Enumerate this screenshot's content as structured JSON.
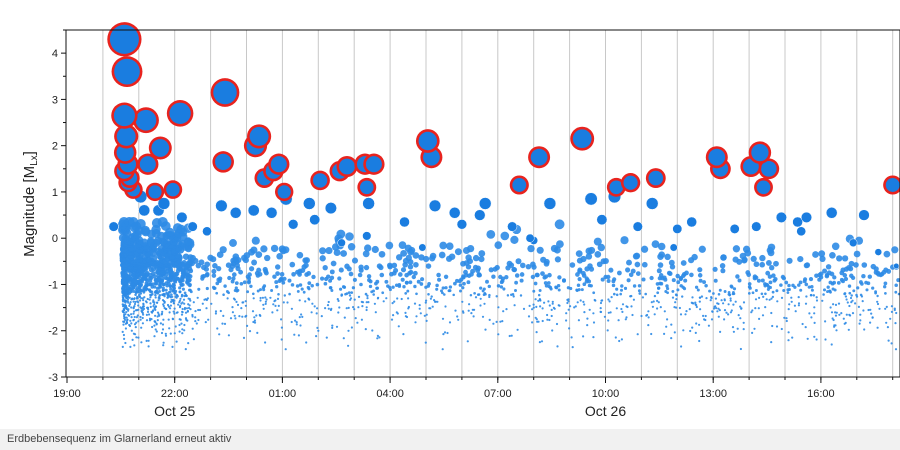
{
  "caption": "Erdbebensequenz im Glarnerland erneut aktiv",
  "colors": {
    "point_fill": "#2e8be6",
    "large_point_fill": "#1a7de0",
    "highlight_ring": "#e8231e",
    "grid": "#c8c8c8",
    "axis": "#111111"
  },
  "chart_data": {
    "type": "scatter",
    "title": "",
    "xlabel": "",
    "ylabel": "Magnitude [M",
    "ylabel_sub": "Lx",
    "ylabel_close": "]",
    "ylim": [
      -3,
      4.5
    ],
    "yticks": [
      -3,
      -2,
      -1,
      0,
      1,
      2,
      3,
      4
    ],
    "x_unit": "hours since 2020-10-24 19:00",
    "xlim": [
      0,
      23.4
    ],
    "xticks": [
      {
        "x": 0,
        "label": "19:00"
      },
      {
        "x": 3,
        "label": "22:00"
      },
      {
        "x": 6,
        "label": "01:00"
      },
      {
        "x": 9,
        "label": "04:00"
      },
      {
        "x": 12,
        "label": "07:00"
      },
      {
        "x": 15,
        "label": "10:00"
      },
      {
        "x": 18,
        "label": "13:00"
      },
      {
        "x": 21,
        "label": "16:00"
      }
    ],
    "date_labels": [
      {
        "x": 3,
        "label": "Oct 25"
      },
      {
        "x": 15,
        "label": "Oct 26"
      }
    ],
    "grid": "vertical lines every hour",
    "legend": "none",
    "highlight_threshold": 1.0,
    "points": [
      [
        1.6,
        4.3
      ],
      [
        1.67,
        3.6
      ],
      [
        1.6,
        2.65
      ],
      [
        2.2,
        2.55
      ],
      [
        3.15,
        2.7
      ],
      [
        4.4,
        3.15
      ],
      [
        2.6,
        1.95
      ],
      [
        1.65,
        2.2
      ],
      [
        1.62,
        1.85
      ],
      [
        1.7,
        1.6
      ],
      [
        2.25,
        1.6
      ],
      [
        2.45,
        1.0
      ],
      [
        2.95,
        1.05
      ],
      [
        4.35,
        1.65
      ],
      [
        5.35,
        2.2
      ],
      [
        5.25,
        2.0
      ],
      [
        5.5,
        1.3
      ],
      [
        5.75,
        1.45
      ],
      [
        5.9,
        1.6
      ],
      [
        6.05,
        1.0
      ],
      [
        6.1,
        0.85
      ],
      [
        6.75,
        0.75
      ],
      [
        7.05,
        1.25
      ],
      [
        7.35,
        0.65
      ],
      [
        7.6,
        1.45
      ],
      [
        7.8,
        1.55
      ],
      [
        8.3,
        1.6
      ],
      [
        8.55,
        1.6
      ],
      [
        8.35,
        1.1
      ],
      [
        8.4,
        0.75
      ],
      [
        10.05,
        2.1
      ],
      [
        10.15,
        1.75
      ],
      [
        10.25,
        0.7
      ],
      [
        11.65,
        0.75
      ],
      [
        12.6,
        1.15
      ],
      [
        13.15,
        1.75
      ],
      [
        14.35,
        2.15
      ],
      [
        15.25,
        0.9
      ],
      [
        15.3,
        1.1
      ],
      [
        15.7,
        1.2
      ],
      [
        16.4,
        1.3
      ],
      [
        18.1,
        1.75
      ],
      [
        18.2,
        1.5
      ],
      [
        19.05,
        1.55
      ],
      [
        19.3,
        1.85
      ],
      [
        19.4,
        1.1
      ],
      [
        19.55,
        1.5
      ],
      [
        20.45,
        0.15
      ],
      [
        23.4,
        1.35
      ],
      [
        12.4,
        0.25
      ],
      [
        9.9,
        -0.2
      ],
      [
        13.0,
        -0.05
      ],
      [
        8.35,
        0.05
      ],
      [
        7.65,
        -0.1
      ],
      [
        23.0,
        1.15
      ],
      [
        21.3,
        0.55
      ],
      [
        20.6,
        0.45
      ],
      [
        20.35,
        0.35
      ],
      [
        14.6,
        0.85
      ],
      [
        17.0,
        0.2
      ],
      [
        16.3,
        0.75
      ],
      [
        17.4,
        0.35
      ],
      [
        13.45,
        0.75
      ],
      [
        11.5,
        0.5
      ],
      [
        10.8,
        0.55
      ],
      [
        11.0,
        0.3
      ],
      [
        5.2,
        0.6
      ],
      [
        5.7,
        0.55
      ],
      [
        4.7,
        0.55
      ],
      [
        4.3,
        0.7
      ],
      [
        3.2,
        0.45
      ],
      [
        3.5,
        0.25
      ],
      [
        1.3,
        0.25
      ],
      [
        1.75,
        1.3
      ],
      [
        1.85,
        1.05
      ],
      [
        2.05,
        0.9
      ],
      [
        2.15,
        0.6
      ],
      [
        2.55,
        0.6
      ],
      [
        2.7,
        0.75
      ],
      [
        1.6,
        1.45
      ],
      [
        1.7,
        1.2
      ],
      [
        19.9,
        0.45
      ],
      [
        22.2,
        0.5
      ],
      [
        21.9,
        -0.1
      ],
      [
        22.6,
        -0.3
      ],
      [
        23.1,
        -0.6
      ],
      [
        18.6,
        0.2
      ],
      [
        16.9,
        -0.2
      ],
      [
        14.9,
        0.4
      ],
      [
        6.9,
        0.4
      ],
      [
        9.4,
        0.35
      ],
      [
        12.9,
        0.0
      ],
      [
        15.9,
        0.25
      ],
      [
        19.2,
        0.25
      ],
      [
        3.9,
        0.15
      ],
      [
        6.3,
        0.3
      ]
    ],
    "background_points": "approximately 1600 smaller events with magnitudes between -2.4 and 0.3, densest in the first two hours after 20:30 on Oct 24 and thinning out toward Oct 26"
  }
}
